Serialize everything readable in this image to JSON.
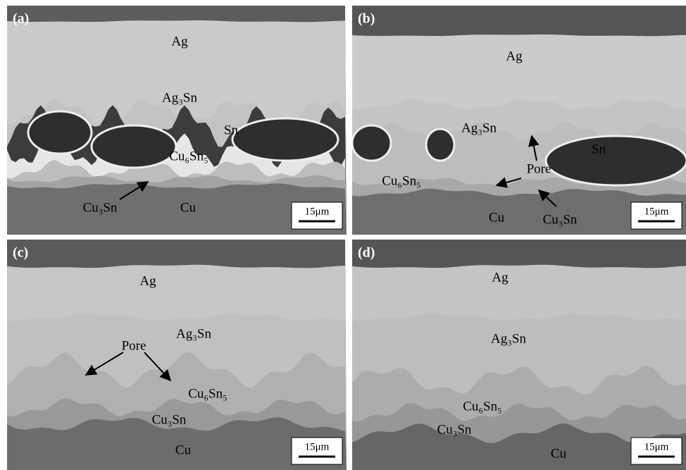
{
  "panels": [
    {
      "label": "(a)",
      "annotations": [
        "Ag",
        "Ag₃Sn",
        "Sn",
        "Cu₆Sn₅",
        "Cu₃Sn",
        "Cu"
      ],
      "scale_bar": "15μm"
    },
    {
      "label": "(b)",
      "annotations": [
        "Ag",
        "Ag₃Sn",
        "Sn",
        "Pore",
        "Cu₆Sn₅",
        "Cu",
        "Cu₃Sn"
      ],
      "scale_bar": "15μm"
    },
    {
      "label": "(c)",
      "annotations": [
        "Ag",
        "Ag₃Sn",
        "Pore",
        "Cu₆Sn₅",
        "Cu₃Sn",
        "Cu"
      ],
      "scale_bar": "15μm"
    },
    {
      "label": "(d)",
      "annotations": [
        "Ag",
        "Ag₃Sn",
        "Cu₆Sn₅",
        "Cu₃Sn",
        "Cu"
      ],
      "scale_bar": "15μm"
    }
  ]
}
